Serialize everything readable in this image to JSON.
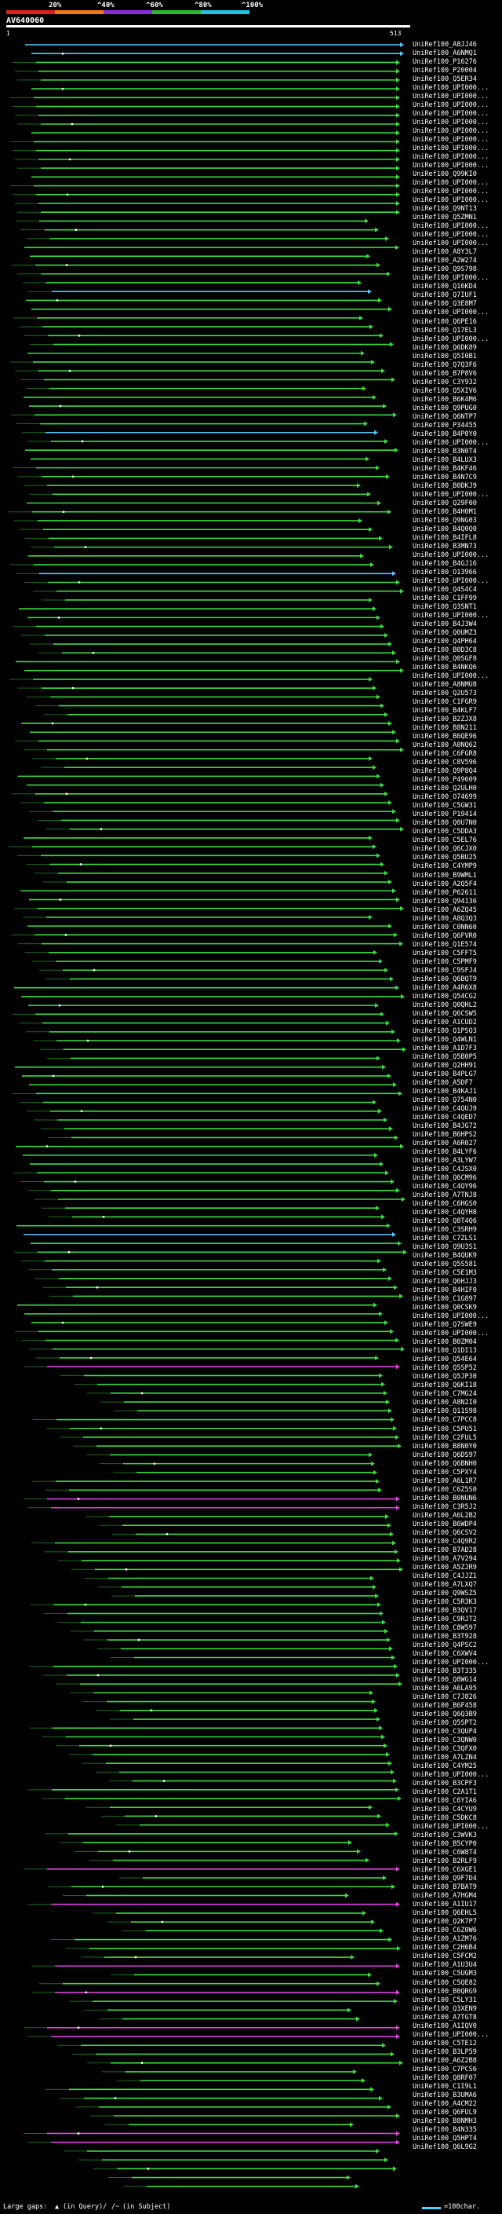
{
  "scale": {
    "ticks": [
      "20%",
      "^40%",
      "^60%",
      "^80%",
      "^100%"
    ],
    "colors": [
      "#e0201c",
      "#f07818",
      "#8a2bd8",
      "#28b830",
      "#20c0e0"
    ]
  },
  "query": {
    "title": "AV640060",
    "start": "1",
    "end": "513"
  },
  "colors": {
    "hit": "#3cdc40",
    "top": "#54c8ff",
    "other": "#e040e0",
    "dark": "#1c6a1c"
  },
  "hits": [
    "UniRef100_A8JJ46",
    "UniRef100_A6NMQ1",
    "UniRef100_P16276",
    "UniRef100_P20004",
    "UniRef100_Q5ER34",
    "UniRef100_UPI000...",
    "UniRef100_UPI000...",
    "UniRef100_UPI000...",
    "UniRef100_UPI000...",
    "UniRef100_UPI000...",
    "UniRef100_UPI000...",
    "UniRef100_UPI000...",
    "UniRef100_UPI000...",
    "UniRef100_UPI000...",
    "UniRef100_UPI000...",
    "UniRef100_Q99KI0",
    "UniRef100_UPI000...",
    "UniRef100_UPI000...",
    "UniRef100_UPI000...",
    "UniRef100_Q9NT13",
    "UniRef100_Q5ZMN1",
    "UniRef100_UPI000...",
    "UniRef100_UPI000...",
    "UniRef100_UPI000...",
    "UniRef100_A8Y3L7",
    "UniRef100_A2W274",
    "UniRef100_Q9S798",
    "UniRef100_UPI000...",
    "UniRef100_Q16KD4",
    "UniRef100_Q7IUF1",
    "UniRef100_Q3E8M7",
    "UniRef100_UPI000...",
    "UniRef100_Q6PE16",
    "UniRef100_Q17EL3",
    "UniRef100_UPI000...",
    "UniRef100_Q6DK89",
    "UniRef100_Q5I0B1",
    "UniRef100_Q7Q3F6",
    "UniRef100_B7P8V6",
    "UniRef100_C3Y932",
    "UniRef100_Q5XIV6",
    "UniRef100_B6K4M6",
    "UniRef100_Q9PUG0",
    "UniRef100_Q6NTP7",
    "UniRef100_P34455",
    "UniRef100_B4P0Y0",
    "UniRef100_UPI000...",
    "UniRef100_B3N0T4",
    "UniRef100_B4LUX3",
    "UniRef100_B4KF46",
    "UniRef100_B4N7C9",
    "UniRef100_B0DKJ9",
    "UniRef100_UPI000...",
    "UniRef100_Q29F00",
    "UniRef100_B4H0M1",
    "UniRef100_Q9NG03",
    "UniRef100_B4Q0Q0",
    "UniRef100_B4IFL8",
    "UniRef100_B3MN73",
    "UniRef100_UPI000...",
    "UniRef100_B4GJ16",
    "UniRef100_O13966",
    "UniRef100_UPI000...",
    "UniRef100_Q4S4C4",
    "UniRef100_C1FF99",
    "UniRef100_Q3SNT1",
    "UniRef100_UPI000...",
    "UniRef100_B4J3W4",
    "UniRef100_Q0UMZ3",
    "UniRef100_Q4PH64",
    "UniRef100_B0D3C8",
    "UniRef100_Q0SGF8",
    "UniRef100_B4NKQ6",
    "UniRef100_UPI000...",
    "UniRef100_A8NMU8",
    "UniRef100_Q2U573",
    "UniRef100_C1FGR9",
    "UniRef100_B4KLF7",
    "UniRef100_B2ZJX8",
    "UniRef100_B8N211",
    "UniRef100_B6QE96",
    "UniRef100_A0NQ62",
    "UniRef100_C6FGR8",
    "UniRef100_C8V596",
    "UniRef100_Q9P8Q4",
    "UniRef100_P49609",
    "UniRef100_Q2ULH0",
    "UniRef100_O74699",
    "UniRef100_C5GW31",
    "UniRef100_P19414",
    "UniRef100_Q0U7N0",
    "UniRef100_C5DDA3",
    "UniRef100_C5EL76",
    "UniRef100_Q6CJX0",
    "UniRef100_Q5BU25",
    "UniRef100_C4YMP9",
    "UniRef100_B9WML1",
    "UniRef100_A2Q5F4",
    "UniRef100_P62611",
    "UniRef100_Q94136",
    "UniRef100_A6ZQ45",
    "UniRef100_A8Q3Q3",
    "UniRef100_C0NN60",
    "UniRef100_Q6FVR0",
    "UniRef100_Q1E574",
    "UniRef100_C5FFT5",
    "UniRef100_C5PMF9",
    "UniRef100_C9SFJ4",
    "UniRef100_Q6BQT9",
    "UniRef100_A4R6X8",
    "UniRef100_Q54CG2",
    "UniRef100_Q0QHL2",
    "UniRef100_Q6CSW5",
    "UniRef100_A1CUD2",
    "UniRef100_Q1PSQ3",
    "UniRef100_Q4WLN1",
    "UniRef100_A1D7F3",
    "UniRef100_Q5B0P5",
    "UniRef100_Q2HH91",
    "UniRef100_B4PLG7",
    "UniRef100_A5DF7",
    "UniRef100_B4KAJ1",
    "UniRef100_Q754N0",
    "UniRef100_C4QUJ9",
    "UniRef100_C4QED7",
    "UniRef100_B4JG72",
    "UniRef100_B6HPS2",
    "UniRef100_A6R027",
    "UniRef100_B4LYF6",
    "UniRef100_A3LYW7",
    "UniRef100_C4JSX0",
    "UniRef100_Q6CM96",
    "UniRef100_C4QY96",
    "UniRef100_A7TNJ8",
    "UniRef100_C6HGS0",
    "UniRef100_C4QYH8",
    "UniRef100_Q8T4Q6",
    "UniRef100_C3SRH9",
    "UniRef100_C7ZLS1",
    "UniRef100_Q9U3S1",
    "UniRef100_B4QUK9",
    "UniRef100_Q5S581",
    "UniRef100_C5E1M3",
    "UniRef100_Q6HJJ3",
    "UniRef100_B4HIF0",
    "UniRef100_C1G897",
    "UniRef100_Q0CSK9",
    "UniRef100_UPI000...",
    "UniRef100_Q7SWE9",
    "UniRef100_UPI000...",
    "UniRef100_B0ZM04",
    "UniRef100_Q1DI13",
    "UniRef100_Q54E64",
    "UniRef100_Q5SP52",
    "UniRef100_Q5JP30",
    "UniRef100_Q6KI18",
    "UniRef100_C7MG24",
    "UniRef100_A8N2I0",
    "UniRef100_Q11S98",
    "UniRef100_C7PCC8",
    "UniRef100_C5PU51",
    "UniRef100_C2FUL5",
    "UniRef100_B8N0Y0",
    "UniRef100_Q6DS97",
    "UniRef100_Q6BNH0",
    "UniRef100_C5PXY4",
    "UniRef100_A6L1R7",
    "UniRef100_C6Z5S0",
    "UniRef100_B0NUN6",
    "UniRef100_C3R5J2",
    "UniRef100_A6L2B2",
    "UniRef100_B6WDP4",
    "UniRef100_Q6CSV2",
    "UniRef100_C4Q9R2",
    "UniRef100_B7AD28",
    "UniRef100_A7V294",
    "UniRef100_A5ZJR9",
    "UniRef100_C4JJZ1",
    "UniRef100_A7LXQ7",
    "UniRef100_Q9WSZ5",
    "UniRef100_C5R3K3",
    "UniRef100_B3QV17",
    "UniRef100_C9RJT2",
    "UniRef100_C8W597",
    "UniRef100_B3T928",
    "UniRef100_Q4PSC2",
    "UniRef100_C6XWV4",
    "UniRef100_UPI000...",
    "UniRef100_B3T335",
    "UniRef100_Q8WG14",
    "UniRef100_A6LA95",
    "UniRef100_C7J826",
    "UniRef100_B6F458",
    "UniRef100_Q6Q3B9",
    "UniRef100_Q5SPT2",
    "UniRef100_C3QUP4",
    "UniRef100_C3QNW0",
    "UniRef100_C3QFX0",
    "UniRef100_A7LZN4",
    "UniRef100_C4YM25",
    "UniRef100_UPI000...",
    "UniRef100_B3CPF3",
    "UniRef100_C2A1T1",
    "UniRef100_C6YIA6",
    "UniRef100_C4CYU9",
    "UniRef100_C5DKC8",
    "UniRef100_UPI000...",
    "UniRef100_C3WVK3",
    "UniRef100_B5CYP0",
    "UniRef100_C6W8T4",
    "UniRef100_B2RLF9",
    "UniRef100_C6XGE1",
    "UniRef100_Q9F7D4",
    "UniRef100_B7BAT9",
    "UniRef100_A7HGM4",
    "UniRef100_A1IU17",
    "UniRef100_Q6EHL5",
    "UniRef100_Q2K7P7",
    "UniRef100_C6Z0W6",
    "UniRef100_A1ZM76",
    "UniRef100_C2H6B4",
    "UniRef100_C5FCM2",
    "UniRef100_A1U3U4",
    "UniRef100_C5UGM3",
    "UniRef100_C5QE82",
    "UniRef100_B0QRG9",
    "UniRef100_C5LY31",
    "UniRef100_Q3XEN9",
    "UniRef100_A7TGT8",
    "UniRef100_A1IQV0",
    "UniRef100_UPI000...",
    "UniRef100_C5TE12",
    "UniRef100_B3LP59",
    "UniRef100_A6Z2B8",
    "UniRef100_C7PCS6",
    "UniRef100_Q8RF07",
    "UniRef100_C1I9L1",
    "UniRef100_B3UMA6",
    "UniRef100_A4CM22",
    "UniRef100_Q6FUL9",
    "UniRef100_B8NMH3",
    "UniRef100_B4N335",
    "UniRef100_Q5HPT4",
    "UniRef100_Q6L9G2"
  ],
  "legend": {
    "large_gaps": "Large gaps:",
    "in_query": "(in Query)/",
    "in_subject": "(in Subject)",
    "scale": "=100char."
  }
}
